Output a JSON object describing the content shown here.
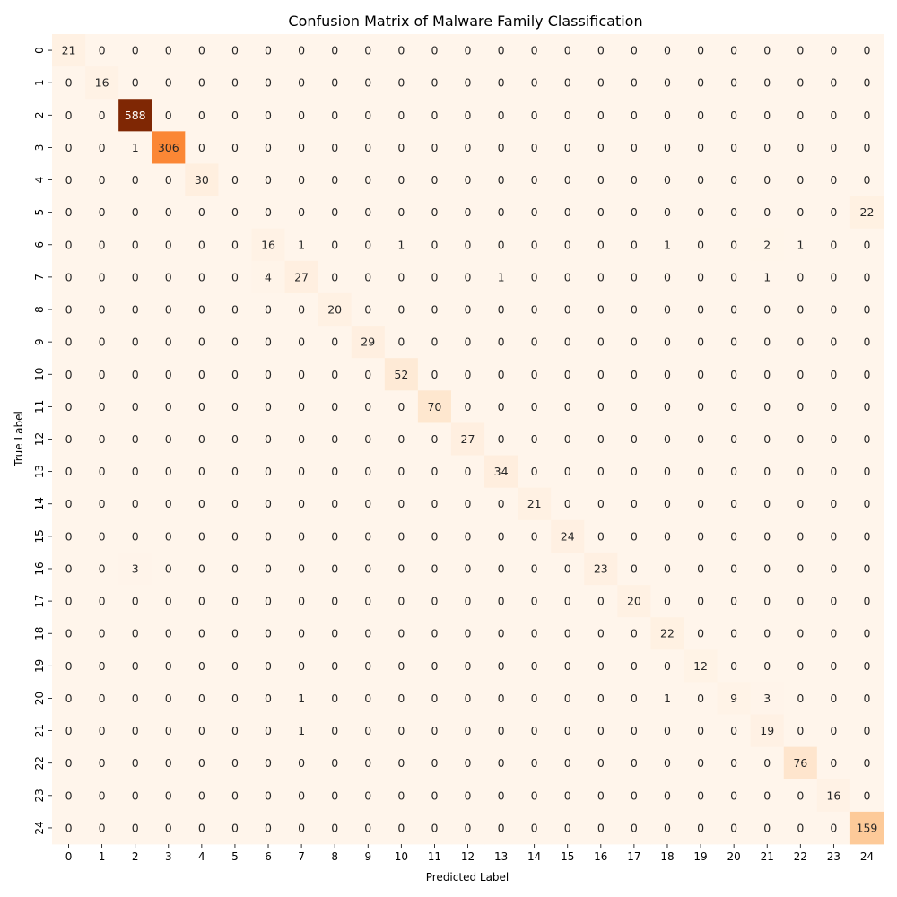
{
  "chart_data": {
    "type": "heatmap",
    "title": "Confusion Matrix of Malware Family Classification",
    "xlabel": "Predicted Label",
    "ylabel": "True Label",
    "x_categories": [
      "0",
      "1",
      "2",
      "3",
      "4",
      "5",
      "6",
      "7",
      "8",
      "9",
      "10",
      "11",
      "12",
      "13",
      "14",
      "15",
      "16",
      "17",
      "18",
      "19",
      "20",
      "21",
      "22",
      "23",
      "24"
    ],
    "y_categories": [
      "0",
      "1",
      "2",
      "3",
      "4",
      "5",
      "6",
      "7",
      "8",
      "9",
      "10",
      "11",
      "12",
      "13",
      "14",
      "15",
      "16",
      "17",
      "18",
      "19",
      "20",
      "21",
      "22",
      "23",
      "24"
    ],
    "colormap": "Oranges",
    "value_range": [
      0,
      588
    ],
    "colorbar": false,
    "annotated": true,
    "values": [
      [
        21,
        0,
        0,
        0,
        0,
        0,
        0,
        0,
        0,
        0,
        0,
        0,
        0,
        0,
        0,
        0,
        0,
        0,
        0,
        0,
        0,
        0,
        0,
        0,
        0
      ],
      [
        0,
        16,
        0,
        0,
        0,
        0,
        0,
        0,
        0,
        0,
        0,
        0,
        0,
        0,
        0,
        0,
        0,
        0,
        0,
        0,
        0,
        0,
        0,
        0,
        0
      ],
      [
        0,
        0,
        588,
        0,
        0,
        0,
        0,
        0,
        0,
        0,
        0,
        0,
        0,
        0,
        0,
        0,
        0,
        0,
        0,
        0,
        0,
        0,
        0,
        0,
        0
      ],
      [
        0,
        0,
        1,
        306,
        0,
        0,
        0,
        0,
        0,
        0,
        0,
        0,
        0,
        0,
        0,
        0,
        0,
        0,
        0,
        0,
        0,
        0,
        0,
        0,
        0
      ],
      [
        0,
        0,
        0,
        0,
        30,
        0,
        0,
        0,
        0,
        0,
        0,
        0,
        0,
        0,
        0,
        0,
        0,
        0,
        0,
        0,
        0,
        0,
        0,
        0,
        0
      ],
      [
        0,
        0,
        0,
        0,
        0,
        0,
        0,
        0,
        0,
        0,
        0,
        0,
        0,
        0,
        0,
        0,
        0,
        0,
        0,
        0,
        0,
        0,
        0,
        0,
        22
      ],
      [
        0,
        0,
        0,
        0,
        0,
        0,
        16,
        1,
        0,
        0,
        1,
        0,
        0,
        0,
        0,
        0,
        0,
        0,
        1,
        0,
        0,
        2,
        1,
        0,
        0
      ],
      [
        0,
        0,
        0,
        0,
        0,
        0,
        4,
        27,
        0,
        0,
        0,
        0,
        0,
        1,
        0,
        0,
        0,
        0,
        0,
        0,
        0,
        1,
        0,
        0,
        0
      ],
      [
        0,
        0,
        0,
        0,
        0,
        0,
        0,
        0,
        20,
        0,
        0,
        0,
        0,
        0,
        0,
        0,
        0,
        0,
        0,
        0,
        0,
        0,
        0,
        0,
        0
      ],
      [
        0,
        0,
        0,
        0,
        0,
        0,
        0,
        0,
        0,
        29,
        0,
        0,
        0,
        0,
        0,
        0,
        0,
        0,
        0,
        0,
        0,
        0,
        0,
        0,
        0
      ],
      [
        0,
        0,
        0,
        0,
        0,
        0,
        0,
        0,
        0,
        0,
        52,
        0,
        0,
        0,
        0,
        0,
        0,
        0,
        0,
        0,
        0,
        0,
        0,
        0,
        0
      ],
      [
        0,
        0,
        0,
        0,
        0,
        0,
        0,
        0,
        0,
        0,
        0,
        70,
        0,
        0,
        0,
        0,
        0,
        0,
        0,
        0,
        0,
        0,
        0,
        0,
        0
      ],
      [
        0,
        0,
        0,
        0,
        0,
        0,
        0,
        0,
        0,
        0,
        0,
        0,
        27,
        0,
        0,
        0,
        0,
        0,
        0,
        0,
        0,
        0,
        0,
        0,
        0
      ],
      [
        0,
        0,
        0,
        0,
        0,
        0,
        0,
        0,
        0,
        0,
        0,
        0,
        0,
        34,
        0,
        0,
        0,
        0,
        0,
        0,
        0,
        0,
        0,
        0,
        0
      ],
      [
        0,
        0,
        0,
        0,
        0,
        0,
        0,
        0,
        0,
        0,
        0,
        0,
        0,
        0,
        21,
        0,
        0,
        0,
        0,
        0,
        0,
        0,
        0,
        0,
        0
      ],
      [
        0,
        0,
        0,
        0,
        0,
        0,
        0,
        0,
        0,
        0,
        0,
        0,
        0,
        0,
        0,
        24,
        0,
        0,
        0,
        0,
        0,
        0,
        0,
        0,
        0
      ],
      [
        0,
        0,
        3,
        0,
        0,
        0,
        0,
        0,
        0,
        0,
        0,
        0,
        0,
        0,
        0,
        0,
        23,
        0,
        0,
        0,
        0,
        0,
        0,
        0,
        0
      ],
      [
        0,
        0,
        0,
        0,
        0,
        0,
        0,
        0,
        0,
        0,
        0,
        0,
        0,
        0,
        0,
        0,
        0,
        20,
        0,
        0,
        0,
        0,
        0,
        0,
        0
      ],
      [
        0,
        0,
        0,
        0,
        0,
        0,
        0,
        0,
        0,
        0,
        0,
        0,
        0,
        0,
        0,
        0,
        0,
        0,
        22,
        0,
        0,
        0,
        0,
        0,
        0
      ],
      [
        0,
        0,
        0,
        0,
        0,
        0,
        0,
        0,
        0,
        0,
        0,
        0,
        0,
        0,
        0,
        0,
        0,
        0,
        0,
        12,
        0,
        0,
        0,
        0,
        0
      ],
      [
        0,
        0,
        0,
        0,
        0,
        0,
        0,
        1,
        0,
        0,
        0,
        0,
        0,
        0,
        0,
        0,
        0,
        0,
        1,
        0,
        9,
        3,
        0,
        0,
        0
      ],
      [
        0,
        0,
        0,
        0,
        0,
        0,
        0,
        1,
        0,
        0,
        0,
        0,
        0,
        0,
        0,
        0,
        0,
        0,
        0,
        0,
        0,
        19,
        0,
        0,
        0
      ],
      [
        0,
        0,
        0,
        0,
        0,
        0,
        0,
        0,
        0,
        0,
        0,
        0,
        0,
        0,
        0,
        0,
        0,
        0,
        0,
        0,
        0,
        0,
        76,
        0,
        0
      ],
      [
        0,
        0,
        0,
        0,
        0,
        0,
        0,
        0,
        0,
        0,
        0,
        0,
        0,
        0,
        0,
        0,
        0,
        0,
        0,
        0,
        0,
        0,
        0,
        16,
        0
      ],
      [
        0,
        0,
        0,
        0,
        0,
        0,
        0,
        0,
        0,
        0,
        0,
        0,
        0,
        0,
        0,
        0,
        0,
        0,
        0,
        0,
        0,
        0,
        0,
        0,
        159
      ]
    ]
  }
}
